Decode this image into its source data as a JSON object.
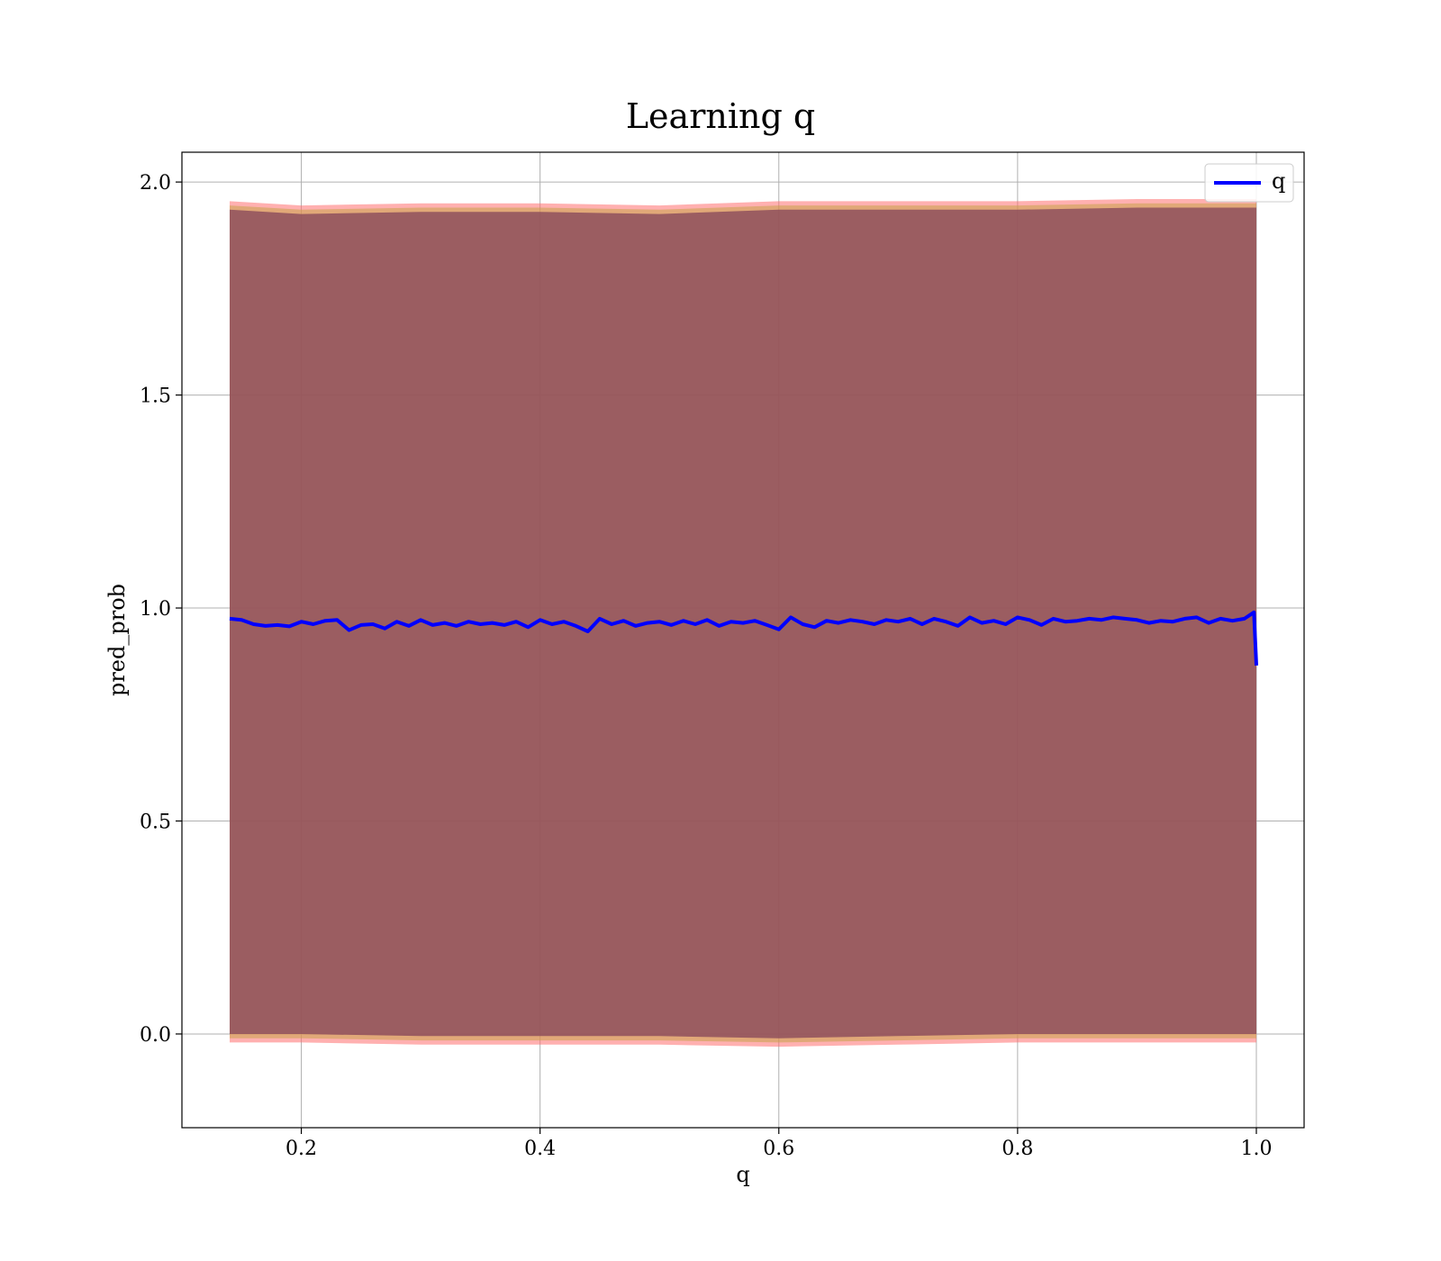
{
  "chart_data": {
    "type": "line",
    "title": "Learning q",
    "xlabel": "q",
    "ylabel": "pred_prob",
    "xlim": [
      0.1,
      1.04
    ],
    "ylim": [
      -0.22,
      2.07
    ],
    "xticks": [
      0.2,
      0.4,
      0.6,
      0.8,
      1.0
    ],
    "xtick_labels": [
      "0.2",
      "0.4",
      "0.6",
      "0.8",
      "1.0"
    ],
    "yticks": [
      0.0,
      0.5,
      1.0,
      1.5,
      2.0
    ],
    "ytick_labels": [
      "0.0",
      "0.5",
      "1.0",
      "1.5",
      "2.0"
    ],
    "grid": true,
    "legend": {
      "position": "top-right",
      "entries": [
        "q"
      ]
    },
    "series": [
      {
        "name": "q",
        "color": "#0000ff",
        "x": [
          0.14,
          0.15,
          0.16,
          0.17,
          0.18,
          0.19,
          0.2,
          0.21,
          0.22,
          0.23,
          0.24,
          0.25,
          0.26,
          0.27,
          0.28,
          0.29,
          0.3,
          0.31,
          0.32,
          0.33,
          0.34,
          0.35,
          0.36,
          0.37,
          0.38,
          0.39,
          0.4,
          0.41,
          0.42,
          0.43,
          0.44,
          0.45,
          0.46,
          0.47,
          0.48,
          0.49,
          0.5,
          0.51,
          0.52,
          0.53,
          0.54,
          0.55,
          0.56,
          0.57,
          0.58,
          0.59,
          0.6,
          0.61,
          0.62,
          0.63,
          0.64,
          0.65,
          0.66,
          0.67,
          0.68,
          0.69,
          0.7,
          0.71,
          0.72,
          0.73,
          0.74,
          0.75,
          0.76,
          0.77,
          0.78,
          0.79,
          0.8,
          0.81,
          0.82,
          0.83,
          0.84,
          0.85,
          0.86,
          0.87,
          0.88,
          0.89,
          0.9,
          0.91,
          0.92,
          0.93,
          0.94,
          0.95,
          0.96,
          0.97,
          0.98,
          0.99,
          0.998,
          1.0
        ],
        "y": [
          0.975,
          0.972,
          0.962,
          0.958,
          0.96,
          0.957,
          0.968,
          0.962,
          0.97,
          0.972,
          0.948,
          0.96,
          0.962,
          0.952,
          0.968,
          0.958,
          0.972,
          0.96,
          0.965,
          0.958,
          0.968,
          0.962,
          0.965,
          0.96,
          0.968,
          0.955,
          0.972,
          0.962,
          0.968,
          0.958,
          0.945,
          0.975,
          0.962,
          0.97,
          0.958,
          0.965,
          0.968,
          0.96,
          0.97,
          0.962,
          0.972,
          0.958,
          0.968,
          0.965,
          0.97,
          0.96,
          0.95,
          0.978,
          0.962,
          0.955,
          0.97,
          0.965,
          0.972,
          0.968,
          0.962,
          0.972,
          0.968,
          0.975,
          0.962,
          0.975,
          0.968,
          0.958,
          0.978,
          0.965,
          0.97,
          0.962,
          0.978,
          0.972,
          0.96,
          0.975,
          0.968,
          0.97,
          0.975,
          0.972,
          0.978,
          0.975,
          0.972,
          0.965,
          0.97,
          0.968,
          0.975,
          0.978,
          0.965,
          0.975,
          0.97,
          0.975,
          0.99,
          0.865
        ]
      }
    ],
    "bands": [
      {
        "color": "#ff6f6f",
        "opacity": 0.55,
        "x": [
          0.14,
          0.2,
          0.3,
          0.4,
          0.5,
          0.6,
          0.7,
          0.8,
          0.9,
          1.0
        ],
        "lower": [
          -0.02,
          -0.02,
          -0.025,
          -0.025,
          -0.025,
          -0.03,
          -0.025,
          -0.02,
          -0.02,
          -0.02
        ],
        "upper": [
          1.955,
          1.945,
          1.95,
          1.95,
          1.945,
          1.955,
          1.955,
          1.955,
          1.96,
          1.96
        ]
      },
      {
        "color": "#c9a24a",
        "opacity": 0.55,
        "x": [
          0.14,
          0.2,
          0.3,
          0.4,
          0.5,
          0.6,
          0.7,
          0.8,
          0.9,
          1.0
        ],
        "lower": [
          -0.01,
          -0.01,
          -0.015,
          -0.015,
          -0.015,
          -0.02,
          -0.015,
          -0.01,
          -0.01,
          -0.01
        ],
        "upper": [
          1.945,
          1.935,
          1.94,
          1.94,
          1.935,
          1.945,
          1.945,
          1.945,
          1.95,
          1.95
        ]
      },
      {
        "color": "#8a4a5b",
        "opacity": 0.8,
        "x": [
          0.14,
          0.2,
          0.3,
          0.4,
          0.5,
          0.6,
          0.7,
          0.8,
          0.9,
          1.0
        ],
        "lower": [
          0.0,
          0.0,
          -0.005,
          -0.005,
          -0.005,
          -0.01,
          -0.005,
          0.0,
          0.0,
          0.0
        ],
        "upper": [
          1.935,
          1.925,
          1.93,
          1.93,
          1.925,
          1.935,
          1.935,
          1.935,
          1.94,
          1.94
        ]
      }
    ]
  }
}
